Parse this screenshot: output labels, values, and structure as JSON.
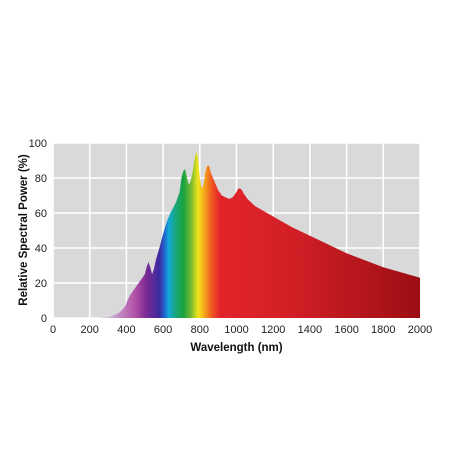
{
  "chart_data": {
    "type": "area",
    "title": "",
    "xlabel": "Wavelength (nm)",
    "ylabel": "Relative Spectral Power (%)",
    "xlim": [
      0,
      2000
    ],
    "ylim": [
      0,
      100
    ],
    "x_ticks": [
      0,
      200,
      400,
      600,
      800,
      1000,
      1200,
      1400,
      1600,
      1800,
      2000
    ],
    "y_ticks": [
      0,
      20,
      40,
      60,
      80,
      100
    ],
    "grid": true,
    "background_color": "#d9d9d9",
    "grid_color": "#ffffff",
    "fill": "visible spectrum gradient (violet to red), then dark red beyond ~700 nm",
    "series": [
      {
        "x": [
          250,
          300,
          330,
          360,
          380,
          395,
          405,
          420,
          440,
          460,
          480,
          500,
          510,
          520,
          530,
          540,
          550,
          560,
          580,
          600,
          620,
          640,
          660,
          670,
          680,
          690,
          700,
          710,
          720,
          730,
          740,
          750,
          760,
          770,
          780,
          790,
          800,
          810,
          820,
          830,
          840,
          850,
          860,
          880,
          900,
          920,
          940,
          960,
          980,
          1000,
          1010,
          1020,
          1030,
          1040,
          1060,
          1080,
          1100,
          1150,
          1200,
          1300,
          1400,
          1500,
          1600,
          1700,
          1800,
          1900,
          2000
        ],
        "y": [
          0,
          0.5,
          1.5,
          3,
          5,
          7,
          10,
          13,
          16,
          19,
          22,
          25,
          29,
          32,
          29,
          25,
          28,
          33,
          40,
          48,
          55,
          60,
          64,
          66,
          69,
          72,
          80,
          84,
          85,
          80,
          76,
          78,
          83,
          90,
          95,
          92,
          80,
          74,
          76,
          83,
          87,
          87,
          83,
          78,
          73,
          70,
          69,
          68,
          69,
          72,
          74,
          74,
          73,
          71,
          68,
          66,
          64,
          61,
          58,
          52,
          47,
          42,
          37,
          33,
          29,
          26,
          23
        ]
      }
    ]
  }
}
